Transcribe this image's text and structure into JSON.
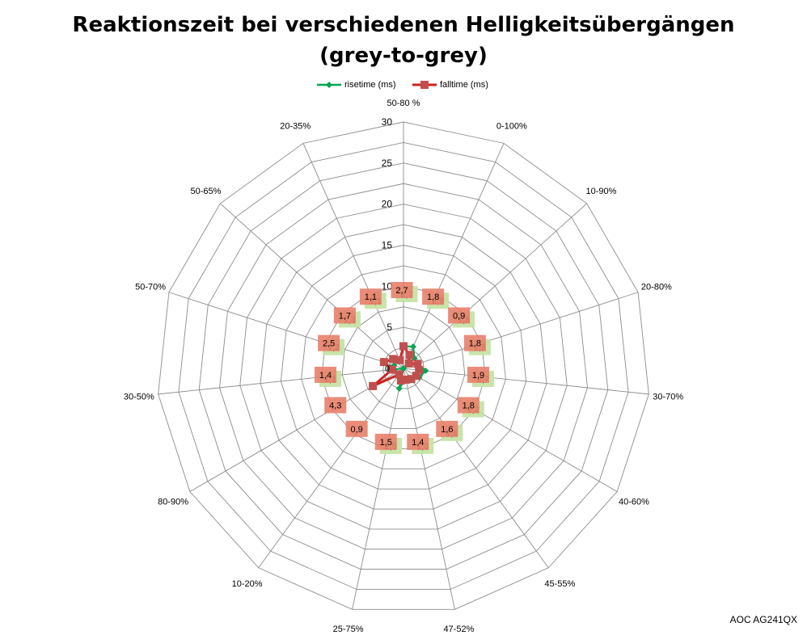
{
  "title_line1": "Reaktionszeit bei verschiedenen Helligkeitsübergängen",
  "title_line2": "(grey-to-grey)",
  "watermark": "AOC AG241QX",
  "colors": {
    "rise": "#00a651",
    "fall": "#cc2222",
    "rise_label_bg": "#c5e3a5",
    "fall_label_bg": "#e8806a"
  },
  "chart_data": {
    "type": "radar",
    "title": "Reaktionszeit bei verschiedenen Helligkeitsübergängen (grey-to-grey)",
    "categories": [
      "50-80 %",
      "0-100%",
      "10-90%",
      "20-80%",
      "30-70%",
      "40-60%",
      "45-55%",
      "47-52%",
      "25-75%",
      "10-20%",
      "80-90%",
      "30-50%",
      "50-70%",
      "50-65%",
      "20-35%"
    ],
    "rlim": [
      0,
      30
    ],
    "ticks": [
      0,
      5,
      10,
      15,
      20,
      25,
      30
    ],
    "grid": true,
    "legend_position": "top",
    "series": [
      {
        "name": "risetime (ms)",
        "marker": "diamond",
        "values": [
          2.7,
          2.9,
          1.8,
          1.8,
          2.7,
          2.2,
          1.6,
          1.3,
          2.5,
          0,
          0,
          1.1,
          1.2,
          1.3,
          1.1
        ],
        "labels": [
          "2,7",
          "2,9",
          "1,8",
          "1,8",
          "2,7",
          "2,2",
          "1,6",
          "1,3",
          "2,5",
          "",
          "",
          "1,1",
          "1,2",
          "1,3",
          "1,1"
        ]
      },
      {
        "name": "falltime (ms)",
        "marker": "square",
        "values": [
          2.7,
          1.8,
          0.9,
          1.8,
          1.9,
          1.8,
          1.6,
          1.4,
          1.5,
          0.9,
          4.3,
          1.4,
          2.5,
          1.7,
          1.1
        ],
        "labels": [
          "2,7",
          "1,8",
          "0,9",
          "1,8",
          "1,9",
          "1,8",
          "1,6",
          "1,4",
          "1,5",
          "0,9",
          "4,3",
          "1,4",
          "2,5",
          "1,7",
          "1,1"
        ]
      }
    ]
  }
}
